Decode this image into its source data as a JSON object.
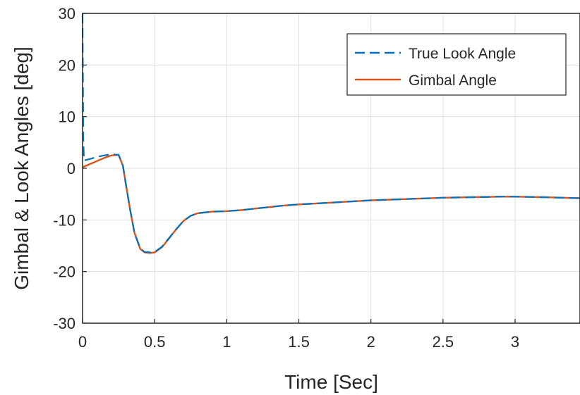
{
  "chart_data": {
    "type": "line",
    "xlabel": "Time [Sec]",
    "ylabel": "Gimbal & Look Angles [deg]",
    "xlim": [
      0,
      3.45
    ],
    "ylim": [
      -30,
      30
    ],
    "x_ticks": [
      0,
      0.5,
      1,
      1.5,
      2,
      2.5,
      3
    ],
    "x_tick_labels": [
      "0",
      "0.5",
      "1",
      "1.5",
      "2",
      "2.5",
      "3"
    ],
    "y_ticks": [
      30,
      20,
      10,
      0,
      -10,
      -20,
      -30
    ],
    "y_tick_labels": [
      "30",
      "20",
      "10",
      "0",
      "-10",
      "-20",
      "-30"
    ],
    "grid": true,
    "legend_position": "top-right",
    "series": [
      {
        "name": "True Look Angle",
        "color": "#0072BD",
        "style": "dashed",
        "x": [
          0,
          0.002,
          0.005,
          0.01,
          0.05,
          0.1,
          0.15,
          0.2,
          0.25,
          0.28,
          0.3,
          0.33,
          0.36,
          0.4,
          0.43,
          0.47,
          0.5,
          0.55,
          0.6,
          0.65,
          0.7,
          0.75,
          0.8,
          0.9,
          1.0,
          1.1,
          1.2,
          1.3,
          1.4,
          1.5,
          1.7,
          2.0,
          2.3,
          2.5,
          2.7,
          2.9,
          3.0,
          3.2,
          3.45
        ],
        "y": [
          30,
          20,
          6,
          1.5,
          1.8,
          2.2,
          2.5,
          2.7,
          2.6,
          0.5,
          -3,
          -8,
          -12.5,
          -15.5,
          -16.2,
          -16.3,
          -16.2,
          -15.2,
          -13.5,
          -11.8,
          -10.2,
          -9.2,
          -8.7,
          -8.4,
          -8.3,
          -8.1,
          -7.8,
          -7.5,
          -7.2,
          -7.0,
          -6.7,
          -6.2,
          -5.9,
          -5.7,
          -5.6,
          -5.5,
          -5.5,
          -5.6,
          -5.8
        ]
      },
      {
        "name": "Gimbal Angle",
        "color": "#D95319",
        "style": "solid",
        "x": [
          0,
          0.05,
          0.1,
          0.15,
          0.2,
          0.25,
          0.28,
          0.3,
          0.33,
          0.36,
          0.4,
          0.43,
          0.47,
          0.5,
          0.55,
          0.6,
          0.65,
          0.7,
          0.75,
          0.8,
          0.9,
          1.0,
          1.1,
          1.2,
          1.3,
          1.4,
          1.5,
          1.7,
          2.0,
          2.3,
          2.5,
          2.7,
          2.9,
          3.0,
          3.2,
          3.45
        ],
        "y": [
          0.2,
          0.8,
          1.4,
          2.0,
          2.5,
          2.6,
          0.5,
          -3,
          -8,
          -12.5,
          -15.6,
          -16.3,
          -16.4,
          -16.3,
          -15.3,
          -13.6,
          -11.8,
          -10.2,
          -9.2,
          -8.7,
          -8.4,
          -8.3,
          -8.1,
          -7.8,
          -7.5,
          -7.2,
          -7.0,
          -6.7,
          -6.2,
          -5.9,
          -5.7,
          -5.6,
          -5.5,
          -5.5,
          -5.6,
          -5.8
        ]
      }
    ]
  }
}
